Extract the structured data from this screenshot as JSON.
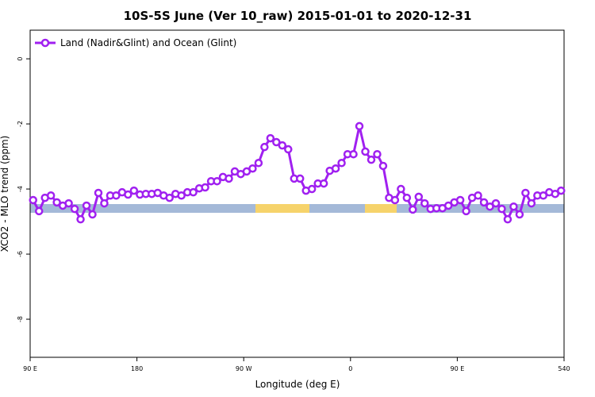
{
  "chart_data": {
    "type": "line",
    "title": "10S-5S June (Ver 10_raw)   2015-01-01 to 2020-12-31",
    "x_label": "Longitude (deg E)",
    "y_label": "XCO2 - MLO trend (ppm)",
    "xlim": [
      90,
      540
    ],
    "xticks": [
      {
        "value": 90,
        "label": "90 E"
      },
      180,
      {
        "value": 270,
        "label": "90 W"
      },
      {
        "value": 360,
        "label": "0"
      },
      {
        "value": 450,
        "label": "90 E"
      },
      540
    ],
    "ylim": [
      -9.17,
      0.88
    ],
    "yticks": [
      0,
      -2,
      -4,
      -6,
      -8
    ],
    "legend": "top-left",
    "x": [
      92.5,
      97.5,
      102.5,
      107.5,
      112.5,
      117.5,
      122.5,
      127.5,
      132.5,
      137.5,
      142.5,
      147.5,
      152.5,
      157.5,
      162.5,
      167.5,
      172.5,
      177.5,
      182.5,
      187.5,
      192.5,
      197.5,
      202.5,
      207.5,
      212.5,
      217.5,
      222.5,
      227.5,
      232.5,
      237.5,
      242.5,
      247.5,
      252.5,
      257.5,
      262.5,
      267.5,
      272.5,
      277.5,
      282.5,
      287.5,
      292.5,
      297.5,
      302.5,
      307.5,
      312.5,
      317.5,
      322.5,
      327.5,
      332.5,
      337.5,
      342.5,
      347.5,
      352.5,
      357.5,
      362.5,
      367.5,
      372.5,
      377.5,
      382.5,
      387.5,
      392.5,
      397.5,
      402.5,
      407.5,
      412.5,
      417.5,
      422.5,
      427.5,
      432.5,
      437.5,
      442.5,
      447.5,
      452.5,
      457.5,
      462.5,
      467.5,
      472.5,
      477.5,
      482.5,
      487.5,
      492.5,
      497.5,
      502.5,
      507.5,
      512.5,
      517.5,
      522.5,
      527.5,
      532.5,
      537.5
    ],
    "series": [
      {
        "name": "Land (Nadir&Glint) and Ocean (Glint)",
        "color": "#a020f0",
        "values": [
          -4.34,
          -4.68,
          -4.27,
          -4.2,
          -4.41,
          -4.51,
          -4.44,
          -4.61,
          -4.93,
          -4.51,
          -4.78,
          -4.12,
          -4.44,
          -4.2,
          -4.2,
          -4.1,
          -4.17,
          -4.05,
          -4.17,
          -4.15,
          -4.15,
          -4.12,
          -4.2,
          -4.27,
          -4.15,
          -4.2,
          -4.1,
          -4.1,
          -3.98,
          -3.95,
          -3.76,
          -3.76,
          -3.63,
          -3.68,
          -3.46,
          -3.54,
          -3.46,
          -3.37,
          -3.2,
          -2.71,
          -2.44,
          -2.56,
          -2.66,
          -2.78,
          -3.68,
          -3.68,
          -4.05,
          -4.0,
          -3.83,
          -3.83,
          -3.44,
          -3.37,
          -3.2,
          -2.93,
          -2.93,
          -2.07,
          -2.85,
          -3.1,
          -2.93,
          -3.29,
          -4.27,
          -4.34,
          -4.0,
          -4.27,
          -4.63,
          -4.24,
          -4.44,
          -4.61,
          -4.59,
          -4.59,
          -4.51,
          -4.41,
          -4.34,
          -4.68,
          -4.27,
          -4.2,
          -4.41,
          -4.54,
          -4.44,
          -4.61,
          -4.93,
          -4.54,
          -4.78,
          -4.12,
          -4.44,
          -4.2,
          -4.2,
          -4.1,
          -4.15,
          -4.05
        ]
      }
    ]
  }
}
